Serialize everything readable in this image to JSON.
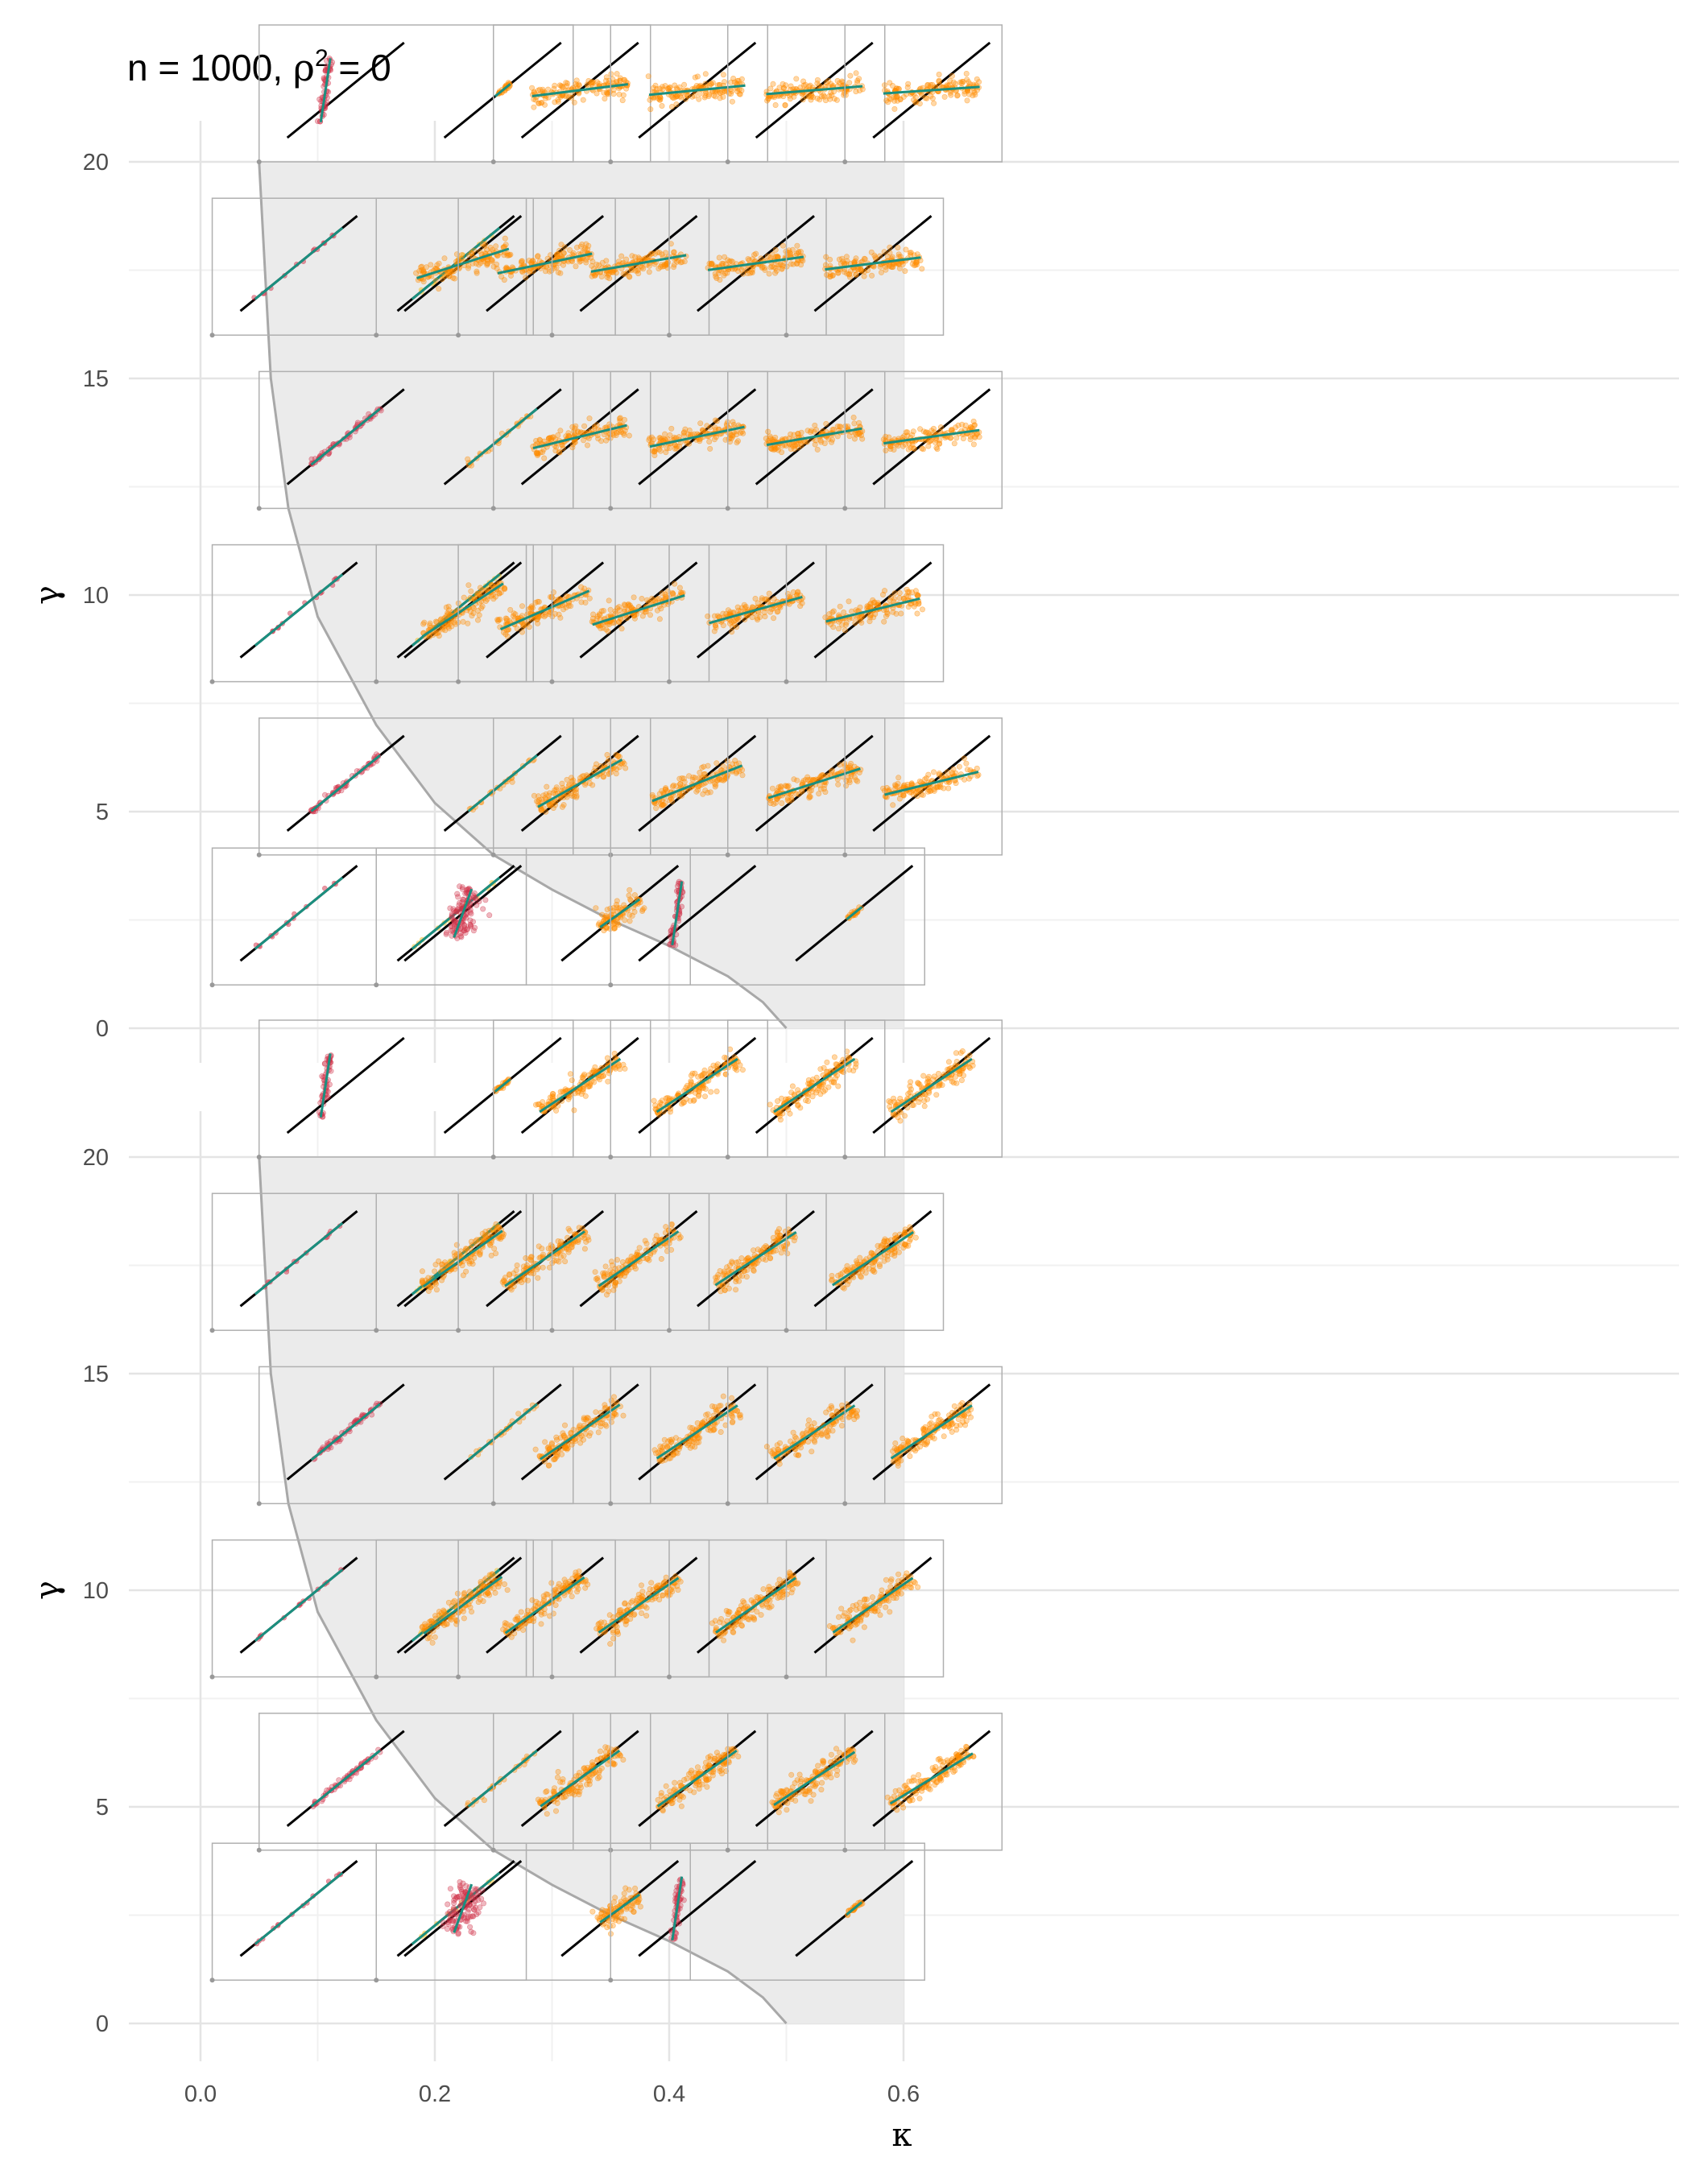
{
  "title": {
    "main": "n = 1000, ",
    "rho": "ρ",
    "sup": "2",
    "rest": " = 0"
  },
  "colors": {
    "background": "#ffffff",
    "panel_grid_major": "#e4e4e4",
    "panel_grid_minor": "#f1f1f1",
    "shaded_region": "#ebebeb",
    "boundary_curve": "#a8a8a8",
    "inset_border": "#b0b0b0",
    "identity_line": "#000000",
    "fit_line": "#1a8f7f",
    "points_red": "#d1344a",
    "points_orange": "#ff8c00",
    "points_teal": "#3fb5a2",
    "points_yellow": "#f4c430"
  },
  "chart_data": [
    {
      "type": "scatter",
      "panel": "top",
      "title": "n = 1000, ρ² = 0",
      "xlabel": "κ",
      "ylabel": "γ",
      "xlim": [
        0,
        0.62
      ],
      "ylim": [
        0,
        21
      ],
      "y_ticks": [
        "0",
        "5",
        "10",
        "15",
        "20"
      ],
      "x_ticks": [],
      "grid": true,
      "shaded_region": "κ from boundary curve to 0.6, γ from 0 to 20",
      "boundary_curve": [
        [
          0.05,
          20
        ],
        [
          0.06,
          15
        ],
        [
          0.075,
          12
        ],
        [
          0.1,
          9.5
        ],
        [
          0.15,
          7
        ],
        [
          0.2,
          5.2
        ],
        [
          0.25,
          4
        ],
        [
          0.3,
          3.2
        ],
        [
          0.35,
          2.5
        ],
        [
          0.4,
          1.9
        ],
        [
          0.45,
          1.2
        ],
        [
          0.48,
          0.6
        ],
        [
          0.5,
          0
        ]
      ],
      "insets": [
        {
          "kappa": 0.05,
          "gamma": 20,
          "count": 2,
          "style": "red_vertical",
          "slope": 0.65
        },
        {
          "kappa": 0.25,
          "gamma": 20,
          "count": 1,
          "style": "orange",
          "slope": 0.18
        },
        {
          "kappa": 0.35,
          "gamma": 20,
          "count": 1,
          "style": "orange",
          "slope": 0.14
        },
        {
          "kappa": 0.45,
          "gamma": 20,
          "count": 1,
          "style": "orange",
          "slope": 0.12
        },
        {
          "kappa": 0.55,
          "gamma": 20,
          "count": 1,
          "style": "orange",
          "slope": 0.1
        },
        {
          "kappa": 0.01,
          "gamma": 16,
          "count": 2,
          "style": "teal_diag",
          "slope": 1
        },
        {
          "kappa": 0.15,
          "gamma": 16,
          "count": 1,
          "style": "orange",
          "slope": 0.45
        },
        {
          "kappa": 0.22,
          "gamma": 16,
          "count": 1,
          "style": "orange",
          "slope": 0.3
        },
        {
          "kappa": 0.3,
          "gamma": 16,
          "count": 1,
          "style": "orange",
          "slope": 0.25
        },
        {
          "kappa": 0.4,
          "gamma": 16,
          "count": 1,
          "style": "orange",
          "slope": 0.2
        },
        {
          "kappa": 0.5,
          "gamma": 16,
          "count": 1,
          "style": "orange",
          "slope": 0.18
        },
        {
          "kappa": 0.05,
          "gamma": 12,
          "count": 2,
          "style": "red_diag",
          "slope": 0.8
        },
        {
          "kappa": 0.25,
          "gamma": 12,
          "count": 1,
          "style": "orange",
          "slope": 0.35
        },
        {
          "kappa": 0.35,
          "gamma": 12,
          "count": 1,
          "style": "orange",
          "slope": 0.3
        },
        {
          "kappa": 0.45,
          "gamma": 12,
          "count": 1,
          "style": "orange",
          "slope": 0.25
        },
        {
          "kappa": 0.55,
          "gamma": 12,
          "count": 1,
          "style": "orange",
          "slope": 0.2
        },
        {
          "kappa": 0.01,
          "gamma": 8,
          "count": 2,
          "style": "teal_diag",
          "slope": 1
        },
        {
          "kappa": 0.15,
          "gamma": 8,
          "count": 1,
          "style": "orange",
          "slope": 0.85
        },
        {
          "kappa": 0.22,
          "gamma": 8,
          "count": 1,
          "style": "orange",
          "slope": 0.6
        },
        {
          "kappa": 0.3,
          "gamma": 8,
          "count": 1,
          "style": "orange",
          "slope": 0.45
        },
        {
          "kappa": 0.4,
          "gamma": 8,
          "count": 1,
          "style": "orange",
          "slope": 0.4
        },
        {
          "kappa": 0.5,
          "gamma": 8,
          "count": 1,
          "style": "orange",
          "slope": 0.35
        },
        {
          "kappa": 0.05,
          "gamma": 4,
          "count": 2,
          "style": "red_diag",
          "slope": 0.85
        },
        {
          "kappa": 0.25,
          "gamma": 4,
          "count": 1,
          "style": "orange",
          "slope": 0.75
        },
        {
          "kappa": 0.35,
          "gamma": 4,
          "count": 1,
          "style": "orange",
          "slope": 0.55
        },
        {
          "kappa": 0.45,
          "gamma": 4,
          "count": 1,
          "style": "orange",
          "slope": 0.45
        },
        {
          "kappa": 0.55,
          "gamma": 4,
          "count": 1,
          "style": "orange",
          "slope": 0.35
        },
        {
          "kappa": 0.01,
          "gamma": 1,
          "count": 2,
          "style": "teal_diag",
          "slope": 1
        },
        {
          "kappa": 0.15,
          "gamma": 1,
          "count": 2,
          "style": "red_blob",
          "slope": 0.6
        },
        {
          "kappa": 0.35,
          "gamma": 1,
          "count": 2,
          "style": "red_vertical",
          "slope": 0.5
        }
      ]
    },
    {
      "type": "scatter",
      "panel": "bottom",
      "title": "",
      "xlabel": "κ",
      "ylabel": "γ",
      "xlim": [
        0,
        0.62
      ],
      "ylim": [
        0,
        21
      ],
      "y_ticks": [
        "0",
        "5",
        "10",
        "15",
        "20"
      ],
      "x_ticks": [
        "0.0",
        "0.2",
        "0.4",
        "0.6"
      ],
      "grid": true,
      "shaded_region": "κ from boundary curve to 0.6, γ from 0 to 20",
      "boundary_curve": [
        [
          0.05,
          20
        ],
        [
          0.06,
          15
        ],
        [
          0.075,
          12
        ],
        [
          0.1,
          9.5
        ],
        [
          0.15,
          7
        ],
        [
          0.2,
          5.2
        ],
        [
          0.25,
          4
        ],
        [
          0.3,
          3.2
        ],
        [
          0.35,
          2.5
        ],
        [
          0.4,
          1.9
        ],
        [
          0.45,
          1.2
        ],
        [
          0.48,
          0.6
        ],
        [
          0.5,
          0
        ]
      ],
      "insets": [
        {
          "kappa": 0.05,
          "gamma": 20,
          "count": 2,
          "style": "red_vertical",
          "slope": 0.65
        },
        {
          "kappa": 0.25,
          "gamma": 20,
          "count": 1,
          "style": "orange",
          "slope": 0.85
        },
        {
          "kappa": 0.35,
          "gamma": 20,
          "count": 1,
          "style": "orange",
          "slope": 0.85
        },
        {
          "kappa": 0.45,
          "gamma": 20,
          "count": 1,
          "style": "orange",
          "slope": 0.85
        },
        {
          "kappa": 0.55,
          "gamma": 20,
          "count": 1,
          "style": "orange",
          "slope": 0.85
        },
        {
          "kappa": 0.01,
          "gamma": 16,
          "count": 2,
          "style": "teal_diag",
          "slope": 1
        },
        {
          "kappa": 0.15,
          "gamma": 16,
          "count": 1,
          "style": "orange",
          "slope": 0.9
        },
        {
          "kappa": 0.22,
          "gamma": 16,
          "count": 1,
          "style": "orange",
          "slope": 0.88
        },
        {
          "kappa": 0.3,
          "gamma": 16,
          "count": 1,
          "style": "orange",
          "slope": 0.88
        },
        {
          "kappa": 0.4,
          "gamma": 16,
          "count": 1,
          "style": "orange",
          "slope": 0.85
        },
        {
          "kappa": 0.5,
          "gamma": 16,
          "count": 1,
          "style": "orange",
          "slope": 0.85
        },
        {
          "kappa": 0.05,
          "gamma": 12,
          "count": 2,
          "style": "red_diag",
          "slope": 0.8
        },
        {
          "kappa": 0.25,
          "gamma": 12,
          "count": 1,
          "style": "orange",
          "slope": 0.88
        },
        {
          "kappa": 0.35,
          "gamma": 12,
          "count": 1,
          "style": "orange",
          "slope": 0.85
        },
        {
          "kappa": 0.45,
          "gamma": 12,
          "count": 1,
          "style": "orange",
          "slope": 0.85
        },
        {
          "kappa": 0.55,
          "gamma": 12,
          "count": 1,
          "style": "orange",
          "slope": 0.85
        },
        {
          "kappa": 0.01,
          "gamma": 8,
          "count": 2,
          "style": "teal_diag",
          "slope": 1
        },
        {
          "kappa": 0.15,
          "gamma": 8,
          "count": 1,
          "style": "orange",
          "slope": 0.92
        },
        {
          "kappa": 0.22,
          "gamma": 8,
          "count": 1,
          "style": "orange",
          "slope": 0.9
        },
        {
          "kappa": 0.3,
          "gamma": 8,
          "count": 1,
          "style": "orange",
          "slope": 0.88
        },
        {
          "kappa": 0.4,
          "gamma": 8,
          "count": 1,
          "style": "orange",
          "slope": 0.88
        },
        {
          "kappa": 0.5,
          "gamma": 8,
          "count": 1,
          "style": "orange",
          "slope": 0.88
        },
        {
          "kappa": 0.05,
          "gamma": 4,
          "count": 2,
          "style": "red_diag",
          "slope": 0.85
        },
        {
          "kappa": 0.25,
          "gamma": 4,
          "count": 1,
          "style": "orange",
          "slope": 0.9
        },
        {
          "kappa": 0.35,
          "gamma": 4,
          "count": 1,
          "style": "orange",
          "slope": 0.9
        },
        {
          "kappa": 0.45,
          "gamma": 4,
          "count": 1,
          "style": "orange",
          "slope": 0.85
        },
        {
          "kappa": 0.55,
          "gamma": 4,
          "count": 1,
          "style": "orange",
          "slope": 0.8
        },
        {
          "kappa": 0.01,
          "gamma": 1,
          "count": 2,
          "style": "teal_diag",
          "slope": 1
        },
        {
          "kappa": 0.15,
          "gamma": 1,
          "count": 2,
          "style": "red_blob",
          "slope": 0.6
        },
        {
          "kappa": 0.35,
          "gamma": 1,
          "count": 2,
          "style": "red_vertical",
          "slope": 0.5
        }
      ]
    }
  ]
}
